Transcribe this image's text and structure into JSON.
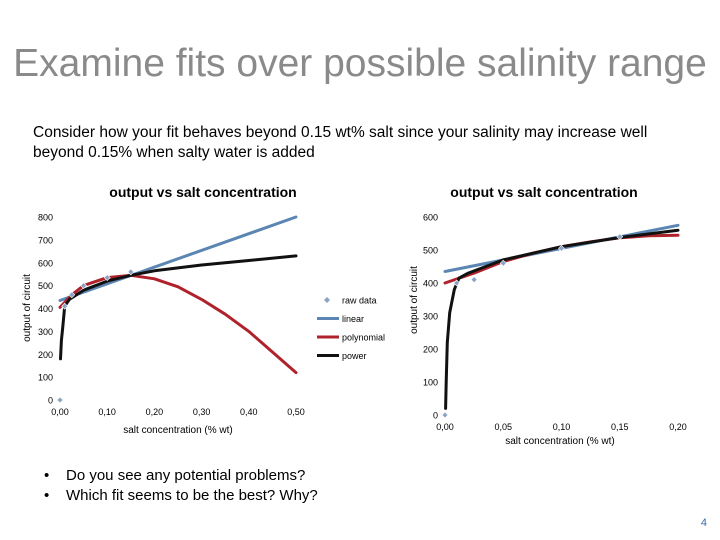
{
  "slide": {
    "title": "Examine fits over possible salinity range",
    "intro": "Consider how your fit behaves beyond 0.15 wt% salt since your salinity may increase well beyond 0.15% when salty water is added",
    "bullets": [
      "Do you see any potential problems?",
      "Which fit seems to be the best? Why?"
    ],
    "bullet_glyph": "•",
    "page_number": "4"
  },
  "colors": {
    "raw_data": "#8aa3c4",
    "linear": "#5b86b3",
    "polynomial": "#b0222b",
    "power": "#111111",
    "title_gray": "#8a8a8a"
  },
  "chart_data": [
    {
      "type": "scatter",
      "title": "output vs salt concentration",
      "xlabel": "salt concentration (% wt)",
      "ylabel": "output of circuit",
      "xlim": [
        0,
        0.5
      ],
      "ylim": [
        0,
        800
      ],
      "x_ticks": [
        0,
        0.1,
        0.2,
        0.3,
        0.4,
        0.5
      ],
      "x_tick_labels": [
        "0,00",
        "0,10",
        "0,20",
        "0,30",
        "0,40",
        "0,50"
      ],
      "y_ticks": [
        0,
        100,
        200,
        300,
        400,
        500,
        600,
        700,
        800
      ],
      "y_tick_labels": [
        "0",
        "100",
        "200",
        "300",
        "400",
        "500",
        "600",
        "700",
        "800"
      ],
      "grid": false,
      "legend_position": "right",
      "series": [
        {
          "name": "raw data",
          "kind": "points",
          "x": [
            0,
            0.01,
            0.025,
            0.05,
            0.1,
            0.15
          ],
          "y": [
            0,
            410,
            460,
            500,
            535,
            560
          ]
        },
        {
          "name": "linear",
          "kind": "line",
          "x": [
            0,
            0.5
          ],
          "y": [
            435,
            800
          ]
        },
        {
          "name": "polynomial",
          "kind": "line",
          "x": [
            0,
            0.025,
            0.05,
            0.1,
            0.15,
            0.2,
            0.25,
            0.3,
            0.35,
            0.4,
            0.45,
            0.5
          ],
          "y": [
            405,
            460,
            500,
            535,
            545,
            530,
            495,
            440,
            375,
            300,
            210,
            120
          ]
        },
        {
          "name": "power",
          "kind": "line",
          "x": [
            0.001,
            0.003,
            0.006,
            0.01,
            0.02,
            0.05,
            0.1,
            0.15,
            0.2,
            0.3,
            0.4,
            0.5
          ],
          "y": [
            180,
            260,
            320,
            410,
            440,
            480,
            520,
            545,
            565,
            590,
            610,
            630
          ]
        }
      ]
    },
    {
      "type": "scatter",
      "title": "output vs salt concentration",
      "xlabel": "salt concentration (% wt)",
      "ylabel": "output of circuit",
      "xlim": [
        0,
        0.2
      ],
      "ylim": [
        0,
        600
      ],
      "x_ticks": [
        0,
        0.05,
        0.1,
        0.15,
        0.2
      ],
      "x_tick_labels": [
        "0,00",
        "0,05",
        "0,10",
        "0,15",
        "0,20"
      ],
      "y_ticks": [
        0,
        100,
        200,
        300,
        400,
        500,
        600
      ],
      "y_tick_labels": [
        "0",
        "100",
        "200",
        "300",
        "400",
        "500",
        "600"
      ],
      "grid": false,
      "legend_position": "none",
      "series": [
        {
          "name": "raw data",
          "kind": "points",
          "x": [
            0,
            0.01,
            0.025,
            0.05,
            0.1,
            0.15
          ],
          "y": [
            0,
            400,
            410,
            460,
            505,
            540
          ]
        },
        {
          "name": "linear",
          "kind": "line",
          "x": [
            0,
            0.2
          ],
          "y": [
            435,
            575
          ]
        },
        {
          "name": "polynomial",
          "kind": "line",
          "x": [
            0,
            0.025,
            0.05,
            0.075,
            0.1,
            0.125,
            0.15,
            0.175,
            0.2
          ],
          "y": [
            400,
            430,
            465,
            490,
            510,
            525,
            537,
            543,
            545
          ]
        },
        {
          "name": "power",
          "kind": "line",
          "x": [
            0.0005,
            0.001,
            0.002,
            0.004,
            0.008,
            0.012,
            0.02,
            0.05,
            0.1,
            0.15,
            0.2
          ],
          "y": [
            20,
            100,
            220,
            310,
            380,
            415,
            430,
            470,
            510,
            538,
            560
          ]
        }
      ]
    }
  ]
}
